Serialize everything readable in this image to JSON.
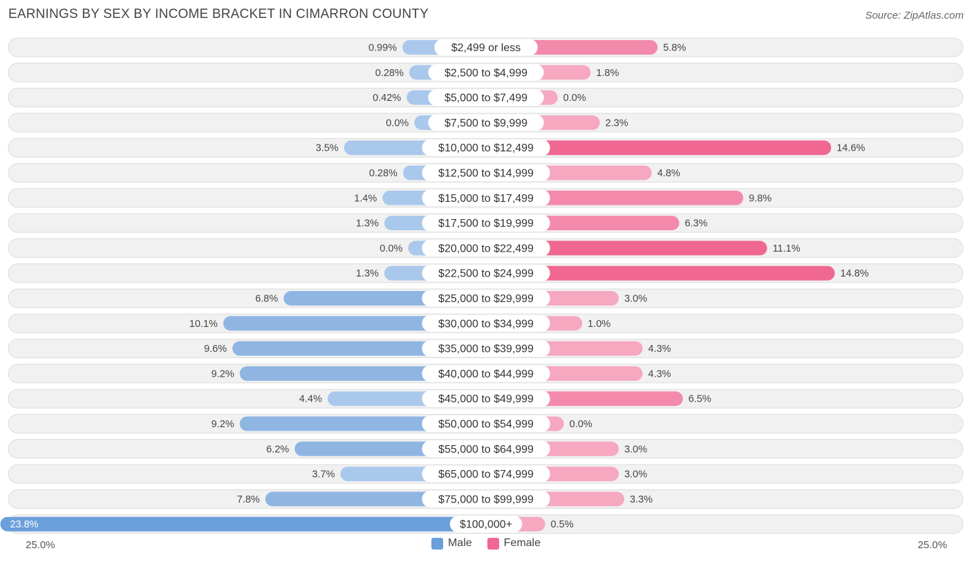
{
  "title": "EARNINGS BY SEX BY INCOME BRACKET IN CIMARRON COUNTY",
  "source": "Source: ZipAtlas.com",
  "colors": {
    "male_light": "#aac8ec",
    "male_dark": "#6a9fdb",
    "female_light": "#f6a8c0",
    "female_dark": "#f06892",
    "row_bg": "#f1f1f1",
    "row_border": "#dcdcdc"
  },
  "legend": {
    "male": "Male",
    "female": "Female"
  },
  "axis": {
    "left_label": "25.0%",
    "right_label": "25.0%"
  },
  "chart_data": {
    "type": "bar",
    "orientation": "horizontal-diverging",
    "title": "EARNINGS BY SEX BY INCOME BRACKET IN CIMARRON COUNTY",
    "xlim": [
      -25,
      25
    ],
    "categories": [
      "$2,499 or less",
      "$2,500 to $4,999",
      "$5,000 to $7,499",
      "$7,500 to $9,999",
      "$10,000 to $12,499",
      "$12,500 to $14,999",
      "$15,000 to $17,499",
      "$17,500 to $19,999",
      "$20,000 to $22,499",
      "$22,500 to $24,999",
      "$25,000 to $29,999",
      "$30,000 to $34,999",
      "$35,000 to $39,999",
      "$40,000 to $44,999",
      "$45,000 to $49,999",
      "$50,000 to $54,999",
      "$55,000 to $64,999",
      "$65,000 to $74,999",
      "$75,000 to $99,999",
      "$100,000+"
    ],
    "series": [
      {
        "name": "Male",
        "values": [
          0.99,
          0.28,
          0.42,
          0.0,
          3.5,
          0.28,
          1.4,
          1.3,
          0.0,
          1.3,
          6.8,
          10.1,
          9.6,
          9.2,
          4.4,
          9.2,
          6.2,
          3.7,
          7.8,
          23.8
        ],
        "labels": [
          "0.99%",
          "0.28%",
          "0.42%",
          "0.0%",
          "3.5%",
          "0.28%",
          "1.4%",
          "1.3%",
          "0.0%",
          "1.3%",
          "6.8%",
          "10.1%",
          "9.6%",
          "9.2%",
          "4.4%",
          "9.2%",
          "6.2%",
          "3.7%",
          "7.8%",
          "23.8%"
        ]
      },
      {
        "name": "Female",
        "values": [
          5.8,
          1.8,
          0.0,
          2.3,
          14.6,
          4.8,
          9.8,
          6.3,
          11.1,
          14.8,
          3.0,
          1.0,
          4.3,
          4.3,
          6.5,
          0.0,
          3.0,
          3.0,
          3.3,
          0.5
        ],
        "labels": [
          "5.8%",
          "1.8%",
          "0.0%",
          "2.3%",
          "14.6%",
          "4.8%",
          "9.8%",
          "6.3%",
          "11.1%",
          "14.8%",
          "3.0%",
          "1.0%",
          "4.3%",
          "4.3%",
          "6.5%",
          "0.0%",
          "3.0%",
          "3.0%",
          "3.3%",
          "0.5%"
        ]
      }
    ]
  }
}
